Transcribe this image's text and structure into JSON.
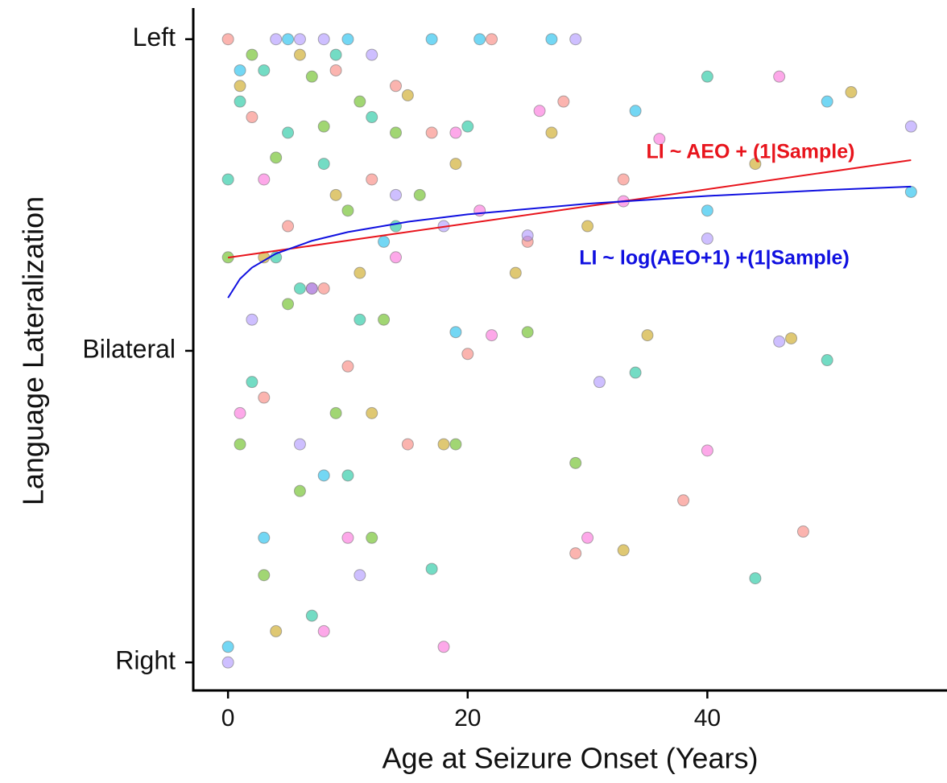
{
  "chart_data": {
    "type": "scatter",
    "xlabel": "Age at Seizure Onset (Years)",
    "ylabel": "Language Lateralization",
    "xlim": [
      -2.9,
      60
    ],
    "xticks": [
      0,
      20,
      40
    ],
    "ylim": [
      -1.09,
      1.1
    ],
    "yticks": [
      {
        "value": -1,
        "label": "Right"
      },
      {
        "value": 0,
        "label": "Bilateral"
      },
      {
        "value": 1,
        "label": "Left"
      }
    ],
    "grid": false,
    "series": [
      {
        "color": "#F8766D",
        "x": [
          0,
          2,
          5,
          8,
          10,
          12,
          14,
          17,
          20,
          22,
          25,
          29,
          33,
          38,
          48,
          3,
          9,
          15,
          28
        ],
        "values": [
          1,
          0.75,
          0.4,
          0.2,
          -0.05,
          0.55,
          0.85,
          0.7,
          -0.01,
          1,
          0.35,
          -0.65,
          0.55,
          -0.48,
          -0.58,
          -0.15,
          0.9,
          -0.3,
          0.8
        ]
      },
      {
        "color": "#C49A00",
        "x": [
          1,
          3,
          6,
          9,
          12,
          15,
          19,
          24,
          27,
          30,
          35,
          44,
          47,
          52,
          4,
          11,
          18,
          33
        ],
        "values": [
          0.85,
          0.3,
          0.95,
          0.5,
          -0.2,
          0.82,
          0.6,
          0.25,
          0.7,
          0.4,
          0.05,
          0.6,
          0.04,
          0.83,
          -0.9,
          0.25,
          -0.3,
          -0.64
        ]
      },
      {
        "color": "#53B400",
        "x": [
          0,
          1,
          2,
          3,
          4,
          5,
          6,
          7,
          8,
          9,
          10,
          11,
          12,
          13,
          14,
          16,
          19,
          25,
          29
        ],
        "values": [
          0.3,
          -0.3,
          0.95,
          -0.72,
          0.62,
          0.15,
          -0.45,
          0.88,
          0.72,
          -0.2,
          0.45,
          0.8,
          -0.6,
          0.1,
          0.7,
          0.5,
          -0.3,
          0.06,
          -0.36
        ]
      },
      {
        "color": "#00C094",
        "x": [
          0,
          1,
          2,
          3,
          4,
          5,
          6,
          7,
          8,
          9,
          10,
          11,
          12,
          14,
          17,
          20,
          34,
          40,
          44,
          50
        ],
        "values": [
          0.55,
          0.8,
          -0.1,
          0.9,
          0.3,
          0.7,
          0.2,
          -0.85,
          0.6,
          0.95,
          -0.4,
          0.1,
          0.75,
          0.4,
          -0.7,
          0.72,
          -0.07,
          0.88,
          -0.73,
          -0.03
        ]
      },
      {
        "color": "#00B6EB",
        "x": [
          0,
          1,
          5,
          7,
          10,
          13,
          17,
          19,
          21,
          27,
          34,
          40,
          50,
          57,
          3,
          8
        ],
        "values": [
          -0.95,
          0.9,
          1,
          0.2,
          1,
          0.35,
          1,
          0.06,
          1,
          1,
          0.77,
          0.45,
          0.8,
          0.51,
          -0.6,
          -0.4
        ]
      },
      {
        "color": "#A58AFF",
        "x": [
          0,
          2,
          4,
          6,
          8,
          11,
          14,
          18,
          25,
          29,
          31,
          40,
          46,
          57,
          6,
          12
        ],
        "values": [
          -1,
          0.1,
          1,
          1,
          1,
          -0.72,
          0.5,
          0.4,
          0.37,
          1,
          -0.1,
          0.36,
          0.03,
          0.72,
          -0.3,
          0.95
        ]
      },
      {
        "color": "#FB61D7",
        "x": [
          1,
          3,
          7,
          10,
          14,
          18,
          21,
          26,
          30,
          33,
          36,
          40,
          46,
          19,
          22,
          8
        ],
        "values": [
          -0.2,
          0.55,
          0.2,
          -0.6,
          0.3,
          -0.95,
          0.45,
          0.77,
          -0.6,
          0.48,
          0.68,
          -0.32,
          0.88,
          0.7,
          0.05,
          -0.9
        ]
      }
    ],
    "fits": [
      {
        "label": "LI ~ AEO + (1|Sample)",
        "color": "#e8141c",
        "x": [
          0,
          57
        ],
        "values": [
          0.299,
          0.612
        ]
      },
      {
        "label": "LI ~ log(AEO+1) +(1|Sample)",
        "color": "#1010e0",
        "x": [
          0,
          1,
          2,
          4,
          7,
          10,
          15,
          20,
          30,
          40,
          50,
          57
        ],
        "values": [
          0.17,
          0.231,
          0.267,
          0.312,
          0.353,
          0.381,
          0.414,
          0.438,
          0.472,
          0.497,
          0.516,
          0.527
        ]
      }
    ]
  }
}
